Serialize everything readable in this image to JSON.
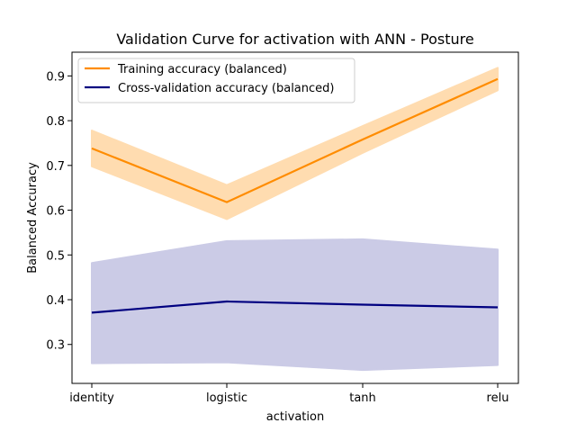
{
  "chart_data": {
    "type": "line",
    "title": "Validation Curve for activation with ANN - Posture",
    "xlabel": "activation",
    "ylabel": "Balanced Accuracy",
    "categories": [
      "identity",
      "logistic",
      "tanh",
      "relu"
    ],
    "ylim": [
      0.213,
      0.953
    ],
    "yticks": [
      0.3,
      0.4,
      0.5,
      0.6,
      0.7,
      0.8,
      0.9
    ],
    "grid": false,
    "legend_position": "top-left",
    "series": [
      {
        "name": "Training accuracy (balanced)",
        "color": "#ff8c00",
        "band_color": "#ffdcb0",
        "values": [
          0.738,
          0.618,
          0.758,
          0.893
        ],
        "lower": [
          0.698,
          0.58,
          0.728,
          0.868
        ],
        "upper": [
          0.778,
          0.656,
          0.788,
          0.918
        ]
      },
      {
        "name": "Cross-validation accuracy (balanced)",
        "color": "#000080",
        "band_color": "#cbcbe6",
        "values": [
          0.371,
          0.396,
          0.389,
          0.383
        ],
        "lower": [
          0.258,
          0.26,
          0.243,
          0.254
        ],
        "upper": [
          0.482,
          0.531,
          0.535,
          0.512
        ]
      }
    ]
  }
}
